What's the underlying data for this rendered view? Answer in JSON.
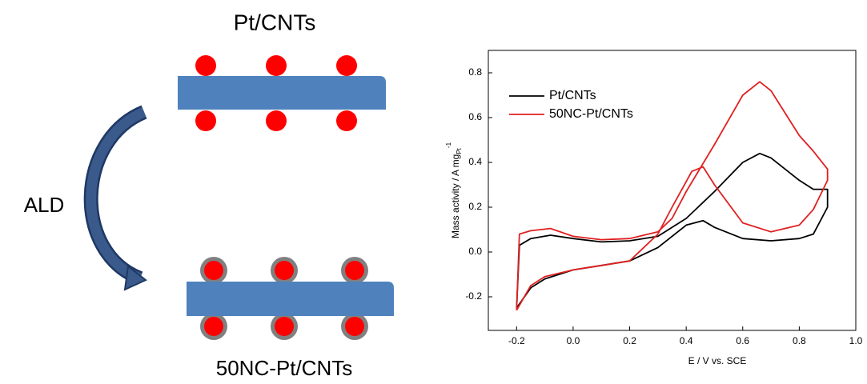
{
  "diagram": {
    "top_label": "Pt/CNTs",
    "arrow_label": "ALD",
    "bottom_label": "50NC-Pt/CNTs"
  },
  "chart_data": {
    "type": "line",
    "x_label": "E / V vs. SCE",
    "y_label": "Mass activity / A mg",
    "y_label_sub": "Pt",
    "y_label_sup": "-1",
    "xlim": [
      -0.3,
      1.0
    ],
    "ylim": [
      -0.35,
      0.9
    ],
    "xticks": [
      -0.2,
      {
        "value": 0,
        "label": "0.0"
      },
      0.2,
      0.4,
      0.6,
      0.8,
      {
        "value": 1,
        "label": "1.0"
      }
    ],
    "yticks": [
      -0.2,
      {
        "value": 0,
        "label": "0.0"
      },
      0.2,
      0.4,
      0.6,
      0.8
    ],
    "grid": false,
    "legend": "upper left",
    "series": [
      {
        "name": "Pt/CNTs",
        "color": "#000000",
        "x": [
          -0.2,
          -0.19,
          -0.15,
          -0.08,
          0,
          0.1,
          0.2,
          0.3,
          0.4,
          0.5,
          0.6,
          0.66,
          0.7,
          0.8,
          0.85,
          0.9,
          0.9,
          0.85,
          0.8,
          0.7,
          0.6,
          0.5,
          0.46,
          0.4,
          0.3,
          0.2,
          0.1,
          0,
          -0.1,
          -0.15,
          -0.2
        ],
        "y": [
          -0.25,
          0.03,
          0.06,
          0.075,
          0.06,
          0.045,
          0.05,
          0.07,
          0.15,
          0.27,
          0.4,
          0.44,
          0.42,
          0.32,
          0.28,
          0.28,
          0.2,
          0.08,
          0.06,
          0.05,
          0.06,
          0.11,
          0.14,
          0.12,
          0.02,
          -0.04,
          -0.06,
          -0.08,
          -0.12,
          -0.16,
          -0.25
        ]
      },
      {
        "name": "50NC-Pt/CNTs",
        "color": "#e02020",
        "x": [
          -0.2,
          -0.19,
          -0.15,
          -0.08,
          0,
          0.1,
          0.2,
          0.3,
          0.35,
          0.4,
          0.5,
          0.6,
          0.66,
          0.7,
          0.8,
          0.85,
          0.9,
          0.9,
          0.85,
          0.8,
          0.7,
          0.6,
          0.5,
          0.46,
          0.42,
          0.35,
          0.3,
          0.2,
          0.1,
          0,
          -0.1,
          -0.15,
          -0.2
        ],
        "y": [
          -0.26,
          0.08,
          0.095,
          0.105,
          0.07,
          0.055,
          0.06,
          0.09,
          0.15,
          0.27,
          0.48,
          0.7,
          0.76,
          0.72,
          0.52,
          0.45,
          0.37,
          0.32,
          0.19,
          0.12,
          0.09,
          0.13,
          0.3,
          0.38,
          0.36,
          0.2,
          0.08,
          -0.04,
          -0.06,
          -0.08,
          -0.11,
          -0.15,
          -0.26
        ]
      }
    ]
  }
}
